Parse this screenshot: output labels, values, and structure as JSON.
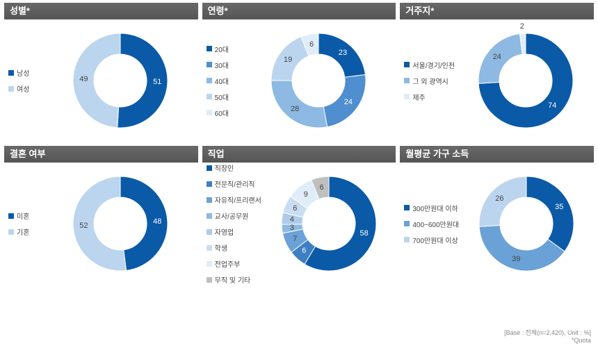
{
  "global": {
    "background": "#ffffff",
    "panel_title_bg_from": "#696969",
    "panel_title_bg_to": "#555555",
    "panel_title_color": "#ffffff",
    "footnote_line1": "[Base : 전체(n=2,420), Unit : %]",
    "footnote_line2": "*Quota"
  },
  "panels": [
    {
      "title": "성별*",
      "type": "donut",
      "outer_radius": 68,
      "inner_radius": 38,
      "start_angle": 0,
      "legend_width": "narrow",
      "slices": [
        {
          "label": "남성",
          "value": 51,
          "color": "#0a5aa8",
          "text_color": "#ffffff"
        },
        {
          "label": "여성",
          "value": 49,
          "color": "#bcd5ee",
          "text_color": "#444444"
        }
      ]
    },
    {
      "title": "연령*",
      "type": "donut",
      "outer_radius": 68,
      "inner_radius": 38,
      "start_angle": 0,
      "legend_width": "narrow",
      "slices": [
        {
          "label": "20대",
          "value": 23,
          "color": "#0a5aa8",
          "text_color": "#ffffff"
        },
        {
          "label": "30대",
          "value": 24,
          "color": "#4f8ecf",
          "text_color": "#ffffff"
        },
        {
          "label": "40대",
          "value": 28,
          "color": "#8db9e3",
          "text_color": "#444444"
        },
        {
          "label": "50대",
          "value": 19,
          "color": "#bcd5ee",
          "text_color": "#444444"
        },
        {
          "label": "60대",
          "value": 6,
          "color": "#e0ecf7",
          "text_color": "#444444"
        }
      ]
    },
    {
      "title": "거주지*",
      "type": "donut",
      "outer_radius": 68,
      "inner_radius": 38,
      "start_angle": 0,
      "legend_width": "wide",
      "slices": [
        {
          "label": "서울/경기/인천",
          "value": 74,
          "color": "#0a5aa8",
          "text_color": "#ffffff"
        },
        {
          "label": "그 외 광역시",
          "value": 24,
          "color": "#8db9e3",
          "text_color": "#444444"
        },
        {
          "label": "제주",
          "value": 2,
          "color": "#e0ecf7",
          "text_color": "#444444",
          "label_outside": true
        }
      ]
    },
    {
      "title": "결혼 여부",
      "type": "donut",
      "outer_radius": 68,
      "inner_radius": 38,
      "start_angle": 0,
      "legend_width": "narrow",
      "slices": [
        {
          "label": "미혼",
          "value": 48,
          "color": "#0a5aa8",
          "text_color": "#ffffff"
        },
        {
          "label": "기혼",
          "value": 52,
          "color": "#bcd5ee",
          "text_color": "#444444"
        }
      ]
    },
    {
      "title": "직업",
      "type": "donut",
      "outer_radius": 68,
      "inner_radius": 38,
      "start_angle": 0,
      "legend_width": "wide",
      "slices": [
        {
          "label": "직장인",
          "value": 58,
          "color": "#0a5aa8",
          "text_color": "#ffffff"
        },
        {
          "label": "전문직/관리직",
          "value": 6,
          "color": "#3d7fc4",
          "text_color": "#ffffff"
        },
        {
          "label": "자유직/프리랜서",
          "value": 7,
          "color": "#6aa1d6",
          "text_color": "#444444"
        },
        {
          "label": "교사/공무원",
          "value": 3,
          "color": "#8db9e3",
          "text_color": "#444444"
        },
        {
          "label": "자영업",
          "value": 4,
          "color": "#aecbe9",
          "text_color": "#444444"
        },
        {
          "label": "학생",
          "value": 6,
          "color": "#c9ddf1",
          "text_color": "#444444"
        },
        {
          "label": "전업주부",
          "value": 9,
          "color": "#e0ecf7",
          "text_color": "#444444"
        },
        {
          "label": "무직 및 기타",
          "value": 6,
          "color": "#bfbfbf",
          "text_color": "#444444"
        }
      ]
    },
    {
      "title": "월평균 가구 소득",
      "type": "donut",
      "outer_radius": 68,
      "inner_radius": 38,
      "start_angle": 0,
      "legend_width": "wide",
      "slices": [
        {
          "label": "300만원대 이하",
          "value": 35,
          "color": "#0a5aa8",
          "text_color": "#ffffff"
        },
        {
          "label": "400~600만원대",
          "value": 39,
          "color": "#6aa1d6",
          "text_color": "#444444"
        },
        {
          "label": "700만원대 이상",
          "value": 26,
          "color": "#bcd5ee",
          "text_color": "#444444"
        }
      ]
    }
  ]
}
